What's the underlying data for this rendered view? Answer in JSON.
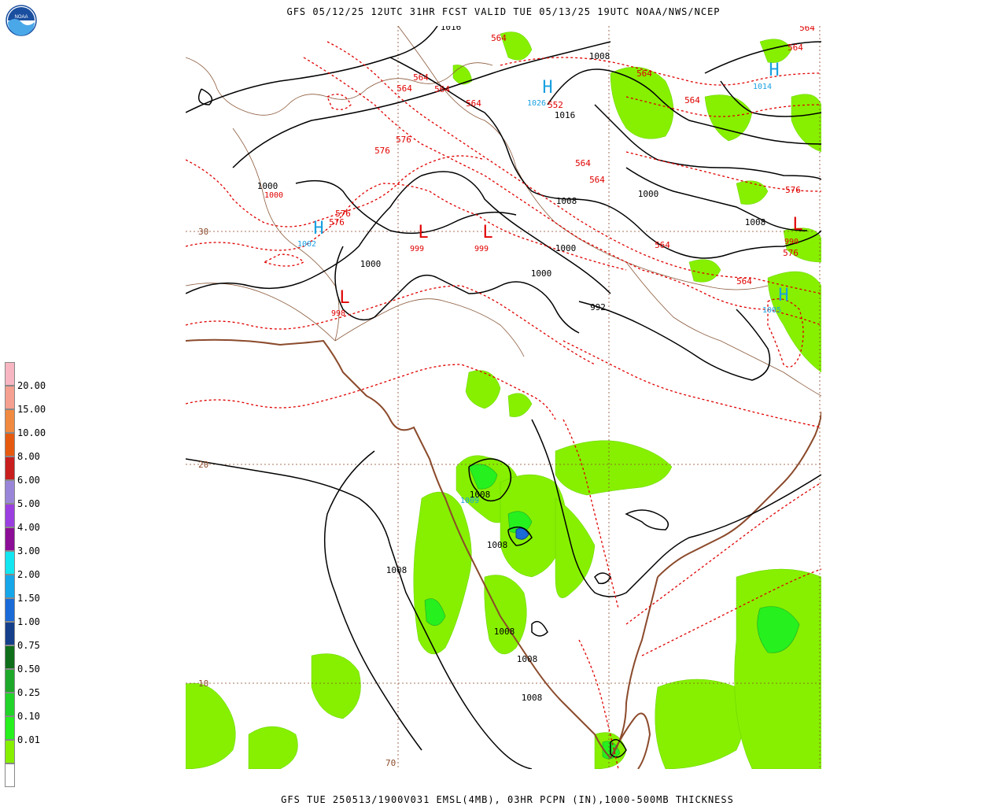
{
  "header": {
    "title": "GFS 05/12/25 12UTC 31HR FCST VALID TUE 05/13/25 19UTC NOAA/NWS/NCEP"
  },
  "footer": {
    "caption": "GFS TUE 250513/1900V031 EMSL(4MB), 03HR PCPN (IN),1000-500MB THICKNESS"
  },
  "logo": {
    "label": "NOAA"
  },
  "legend": {
    "swatches": [
      {
        "label": "20.00",
        "color": "#f7b6c2"
      },
      {
        "label": "15.00",
        "color": "#f5a090"
      },
      {
        "label": "10.00",
        "color": "#f08a40"
      },
      {
        "label": "8.00",
        "color": "#e65a10"
      },
      {
        "label": "6.00",
        "color": "#c81e1e"
      },
      {
        "label": "5.00",
        "color": "#9a86d8"
      },
      {
        "label": "4.00",
        "color": "#9b3fe0"
      },
      {
        "label": "3.00",
        "color": "#8c0e96"
      },
      {
        "label": "2.00",
        "color": "#12e6f0"
      },
      {
        "label": "1.50",
        "color": "#16a6ea"
      },
      {
        "label": "1.00",
        "color": "#1a6ad8"
      },
      {
        "label": "0.75",
        "color": "#153f8a"
      },
      {
        "label": "0.50",
        "color": "#0f6e1a"
      },
      {
        "label": "0.25",
        "color": "#1ea82a"
      },
      {
        "label": "0.10",
        "color": "#22d42a"
      },
      {
        "label": "0.01",
        "color": "#26f01e"
      },
      {
        "label": "",
        "color": "#86f000"
      },
      {
        "label": "",
        "color": "#ffffff"
      }
    ]
  },
  "map": {
    "lat_labels": [
      "30",
      "20",
      "10"
    ],
    "lon_labels": [
      "70"
    ],
    "pressure_labels": [
      "1016",
      "1008",
      "1016",
      "1000",
      "1000",
      "1008",
      "1000",
      "1000",
      "1000",
      "992",
      "1008",
      "1008",
      "1008",
      "1008",
      "1008",
      "1008",
      "1008"
    ],
    "thickness_labels": [
      "564",
      "564",
      "564",
      "564",
      "564",
      "564",
      "564",
      "552",
      "564",
      "564",
      "576",
      "576",
      "576",
      "576",
      "576",
      "564",
      "564",
      "564",
      "576",
      "564"
    ],
    "lows": [
      {
        "letter": "L",
        "value": "999"
      },
      {
        "letter": "L",
        "value": "999"
      },
      {
        "letter": "L",
        "value": "998"
      },
      {
        "letter": "L",
        "value": "990"
      },
      {
        "letter": "L",
        "value": "1000"
      }
    ],
    "highs": [
      {
        "letter": "H",
        "value": "1002"
      },
      {
        "letter": "H",
        "value": "1026"
      },
      {
        "letter": "H",
        "value": "1014"
      },
      {
        "letter": "H",
        "value": "1005"
      },
      {
        "letter": "H",
        "value": "1009"
      }
    ],
    "colors": {
      "isobar": "#000000",
      "thickness": "#e00000",
      "coastline": "#8b4a2b",
      "border": "#8b5a3c",
      "gridline": "#8b4a2b",
      "high": "#1aa0e0",
      "precip_light": "#86f000",
      "precip_mid": "#26f01e",
      "precip_heavy": "#1ea82a"
    }
  }
}
